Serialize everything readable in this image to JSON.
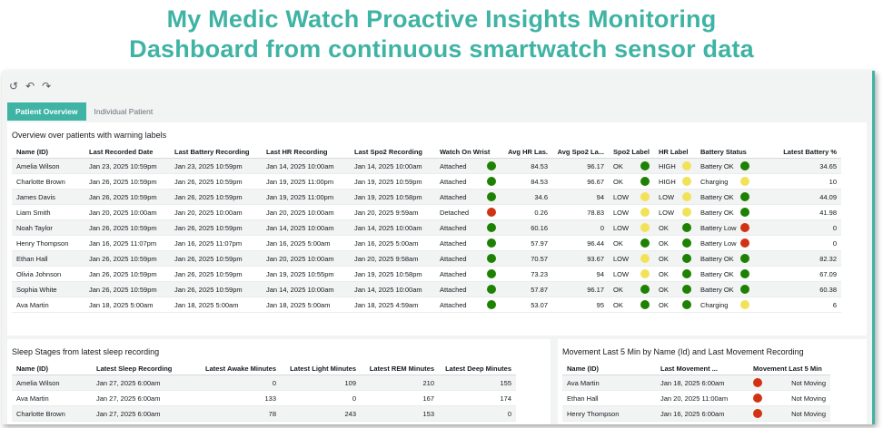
{
  "banner": {
    "line1": "My Medic Watch Proactive Insights Monitoring",
    "line2": "Dashboard from continuous smartwatch sensor data"
  },
  "toolbar": {
    "undo_all": "↺",
    "undo": "↶",
    "redo": "↷"
  },
  "tabs": [
    {
      "label": "Patient Overview",
      "active": true
    },
    {
      "label": "Individual Patient",
      "active": false
    }
  ],
  "overview": {
    "title": "Overview over patients with warning labels",
    "columns": [
      "Name (ID)",
      "Last Recorded Date",
      "Last Battery Recording",
      "Last HR Recording",
      "Last Spo2 Recording",
      "Watch On Wrist",
      "Avg HR Las.",
      "Avg Spo2 La...",
      "Spo2 Label",
      "HR Label",
      "Battery Status",
      "Latest Battery %"
    ],
    "rows": [
      {
        "name": "Amelia Wilson",
        "recorded": "Jan 23, 2025 10:59pm",
        "battery_rec": "Jan 23, 2025 10:59pm",
        "hr_rec": "Jan 14, 2025 10:00am",
        "spo2_rec": "Jan 14, 2025 10:00am",
        "wrist": "Attached",
        "wrist_color": "green",
        "avg_hr": "84.53",
        "avg_spo2": "96.17",
        "spo2_label": "OK",
        "spo2_color": "green",
        "hr_label": "HIGH",
        "hr_color": "yellow",
        "battery_status": "Battery OK",
        "battery_color": "green",
        "battery_pct": "34.65"
      },
      {
        "name": "Charlotte Brown",
        "recorded": "Jan 26, 2025 10:59pm",
        "battery_rec": "Jan 26, 2025 10:59pm",
        "hr_rec": "Jan 19, 2025 11:00pm",
        "spo2_rec": "Jan 19, 2025 10:59pm",
        "wrist": "Attached",
        "wrist_color": "green",
        "avg_hr": "84.53",
        "avg_spo2": "96.67",
        "spo2_label": "OK",
        "spo2_color": "green",
        "hr_label": "HIGH",
        "hr_color": "yellow",
        "battery_status": "Charging",
        "battery_color": "yellow",
        "battery_pct": "10"
      },
      {
        "name": "James Davis",
        "recorded": "Jan 26, 2025 10:59pm",
        "battery_rec": "Jan 26, 2025 10:59pm",
        "hr_rec": "Jan 19, 2025 11:00pm",
        "spo2_rec": "Jan 19, 2025 10:58pm",
        "wrist": "Attached",
        "wrist_color": "green",
        "avg_hr": "34.6",
        "avg_spo2": "94",
        "spo2_label": "LOW",
        "spo2_color": "yellow",
        "hr_label": "LOW",
        "hr_color": "yellow",
        "battery_status": "Battery OK",
        "battery_color": "green",
        "battery_pct": "44.09"
      },
      {
        "name": "Liam Smith",
        "recorded": "Jan 20, 2025 10:00am",
        "battery_rec": "Jan 20, 2025 10:00am",
        "hr_rec": "Jan 20, 2025 10:00am",
        "spo2_rec": "Jan 20, 2025 9:59am",
        "wrist": "Detached",
        "wrist_color": "red",
        "avg_hr": "0.26",
        "avg_spo2": "78.83",
        "spo2_label": "LOW",
        "spo2_color": "yellow",
        "hr_label": "LOW",
        "hr_color": "yellow",
        "battery_status": "Battery OK",
        "battery_color": "green",
        "battery_pct": "41.98"
      },
      {
        "name": "Noah Taylor",
        "recorded": "Jan 26, 2025 10:59pm",
        "battery_rec": "Jan 26, 2025 10:59pm",
        "hr_rec": "Jan 14, 2025 10:00am",
        "spo2_rec": "Jan 14, 2025 10:00am",
        "wrist": "Attached",
        "wrist_color": "green",
        "avg_hr": "60.16",
        "avg_spo2": "0",
        "spo2_label": "LOW",
        "spo2_color": "yellow",
        "hr_label": "OK",
        "hr_color": "green",
        "battery_status": "Battery Low",
        "battery_color": "red",
        "battery_pct": "0"
      },
      {
        "name": "Henry Thompson",
        "recorded": "Jan 16, 2025 11:07pm",
        "battery_rec": "Jan 16, 2025 11:07pm",
        "hr_rec": "Jan 16, 2025 5:00am",
        "spo2_rec": "Jan 16, 2025 5:00am",
        "wrist": "Attached",
        "wrist_color": "green",
        "avg_hr": "57.97",
        "avg_spo2": "96.44",
        "spo2_label": "OK",
        "spo2_color": "green",
        "hr_label": "OK",
        "hr_color": "green",
        "battery_status": "Battery Low",
        "battery_color": "red",
        "battery_pct": "0"
      },
      {
        "name": "Ethan Hall",
        "recorded": "Jan 26, 2025 10:59pm",
        "battery_rec": "Jan 26, 2025 10:59pm",
        "hr_rec": "Jan 20, 2025 10:00am",
        "spo2_rec": "Jan 20, 2025 9:58am",
        "wrist": "Attached",
        "wrist_color": "green",
        "avg_hr": "70.57",
        "avg_spo2": "93.67",
        "spo2_label": "LOW",
        "spo2_color": "yellow",
        "hr_label": "OK",
        "hr_color": "green",
        "battery_status": "Battery OK",
        "battery_color": "green",
        "battery_pct": "82.32"
      },
      {
        "name": "Olivia Johnson",
        "recorded": "Jan 26, 2025 10:59pm",
        "battery_rec": "Jan 26, 2025 10:59pm",
        "hr_rec": "Jan 19, 2025 10:55pm",
        "spo2_rec": "Jan 19, 2025 10:58pm",
        "wrist": "Attached",
        "wrist_color": "green",
        "avg_hr": "73.23",
        "avg_spo2": "94",
        "spo2_label": "LOW",
        "spo2_color": "yellow",
        "hr_label": "OK",
        "hr_color": "green",
        "battery_status": "Battery OK",
        "battery_color": "green",
        "battery_pct": "67.09"
      },
      {
        "name": "Sophia White",
        "recorded": "Jan 26, 2025 10:59pm",
        "battery_rec": "Jan 26, 2025 10:59pm",
        "hr_rec": "Jan 14, 2025 10:00am",
        "spo2_rec": "Jan 14, 2025 10:00am",
        "wrist": "Attached",
        "wrist_color": "green",
        "avg_hr": "57.87",
        "avg_spo2": "96.17",
        "spo2_label": "OK",
        "spo2_color": "green",
        "hr_label": "OK",
        "hr_color": "green",
        "battery_status": "Battery OK",
        "battery_color": "green",
        "battery_pct": "60.38"
      },
      {
        "name": "Ava Martin",
        "recorded": "Jan 18, 2025 5:00am",
        "battery_rec": "Jan 18, 2025 5:00am",
        "hr_rec": "Jan 18, 2025 5:00am",
        "spo2_rec": "Jan 18, 2025 4:59am",
        "wrist": "Attached",
        "wrist_color": "green",
        "avg_hr": "53.07",
        "avg_spo2": "95",
        "spo2_label": "OK",
        "spo2_color": "green",
        "hr_label": "OK",
        "hr_color": "green",
        "battery_status": "Charging",
        "battery_color": "yellow",
        "battery_pct": "6"
      }
    ]
  },
  "sleep": {
    "title": "Sleep Stages from latest sleep recording",
    "columns": [
      "Name (ID)",
      "Latest Sleep Recording",
      "Latest Awake Minutes",
      "Latest Light Minutes",
      "Latest REM Minutes",
      "Latest Deep Minutes"
    ],
    "rows": [
      {
        "name": "Amelia Wilson",
        "recording": "Jan 27, 2025 6:00am",
        "awake": "0",
        "light": "109",
        "rem": "210",
        "deep": "155"
      },
      {
        "name": "Ava Martin",
        "recording": "Jan 27, 2025 6:00am",
        "awake": "133",
        "light": "0",
        "rem": "167",
        "deep": "174"
      },
      {
        "name": "Charlotte Brown",
        "recording": "Jan 27, 2025 6:00am",
        "awake": "78",
        "light": "243",
        "rem": "153",
        "deep": "0"
      }
    ]
  },
  "movement": {
    "title": "Movement Last 5 Min by Name (Id) and Last Movement Recording",
    "columns": [
      "Name (ID)",
      "Last Movement ...",
      "Movement Last 5 Min"
    ],
    "rows": [
      {
        "name": "Ava Martin",
        "last": "Jan 18, 2025 6:00am",
        "status": "Not Moving",
        "color": "red"
      },
      {
        "name": "Ethan Hall",
        "last": "Jan 20, 2025 11:00am",
        "status": "Not Moving",
        "color": "red"
      },
      {
        "name": "Henry Thompson",
        "last": "Jan 16, 2025 6:00am",
        "status": "Not Moving",
        "color": "red"
      }
    ]
  }
}
